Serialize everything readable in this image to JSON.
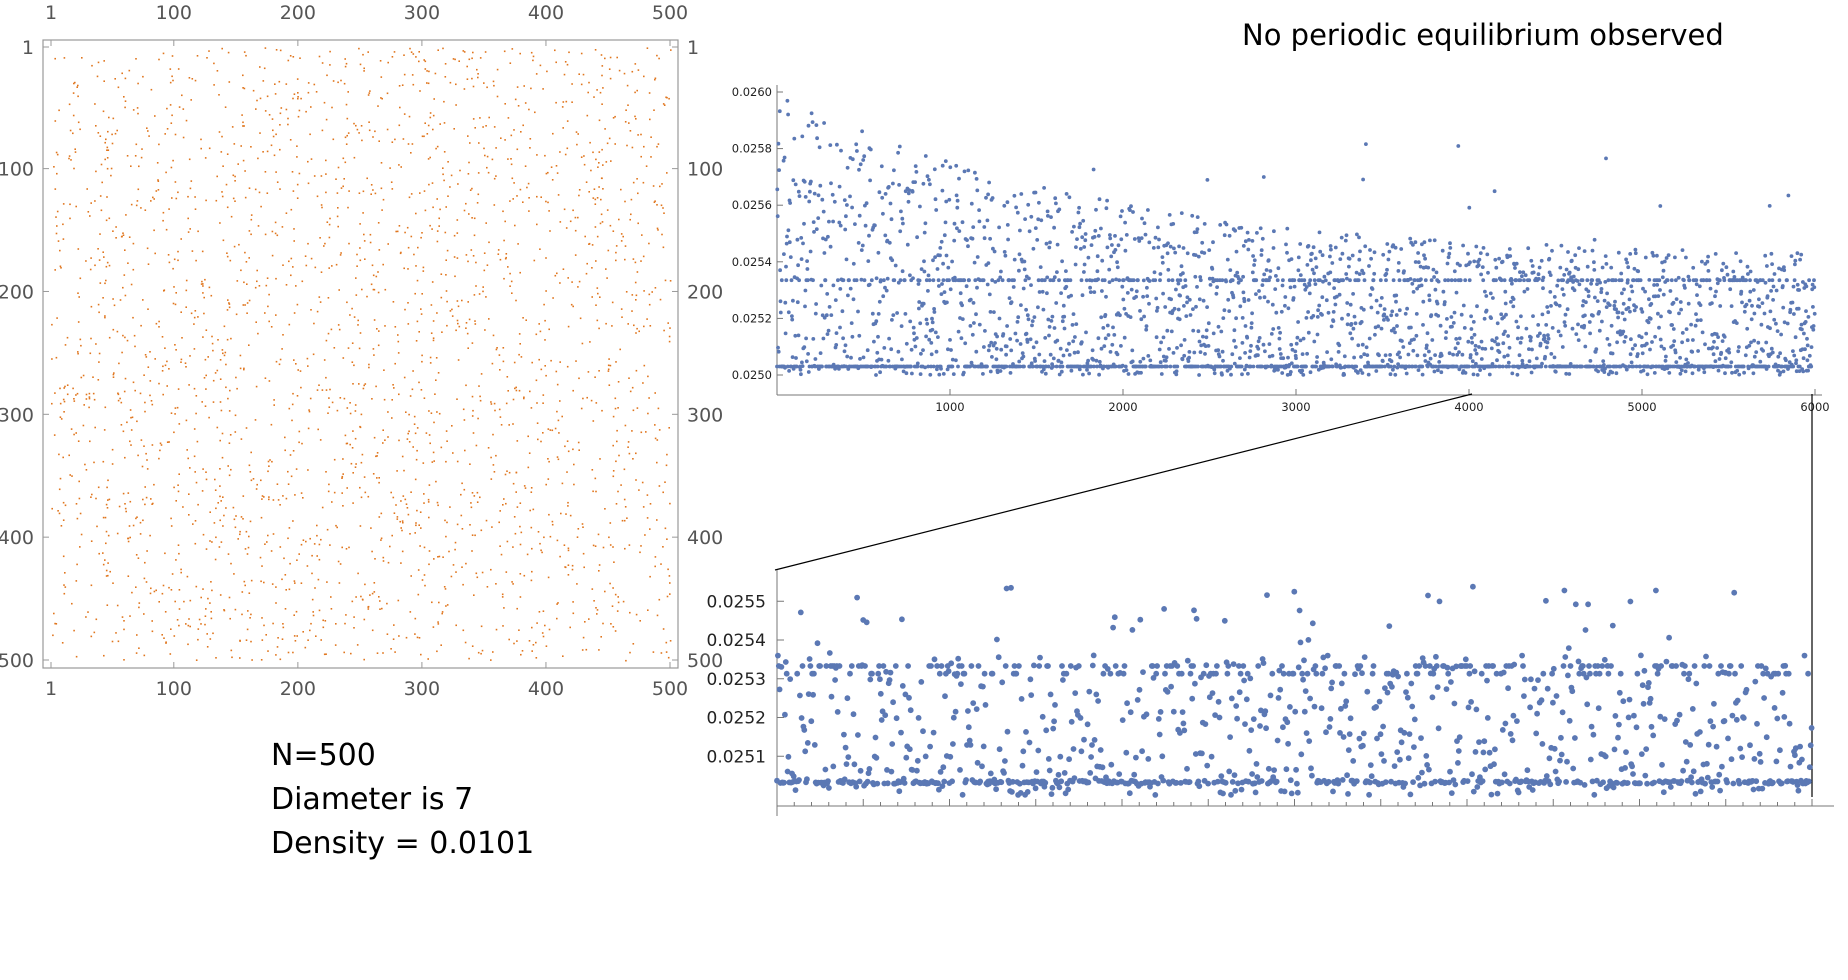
{
  "headline": "No periodic equilibrium observed",
  "info": {
    "n": "N=500",
    "diameter": "Diameter is 7",
    "density": "Density = 0.0101"
  },
  "chart_data": [
    {
      "type": "scatter",
      "title": "",
      "xlabel": "",
      "ylabel": "",
      "xlim": [
        1,
        500
      ],
      "ylim": [
        1,
        500
      ],
      "y_reversed": true,
      "mirrored_frame_ticks": true,
      "x_ticks": [
        "1",
        "100",
        "200",
        "300",
        "400",
        "500"
      ],
      "y_ticks": [
        "1",
        "100",
        "200",
        "300",
        "400",
        "500"
      ],
      "point_color": "#e0761e",
      "point_count_approx": 2525,
      "distribution": "uniform random occupied cells of a 500×500 grid"
    },
    {
      "type": "scatter",
      "title": "",
      "xlabel": "",
      "ylabel": "",
      "xlim": [
        0,
        6000
      ],
      "ylim": [
        0.025,
        0.026
      ],
      "x_ticks": [
        "1000",
        "2000",
        "3000",
        "4000",
        "5000",
        "6000"
      ],
      "y_ticks": [
        "0.0250",
        "0.0252",
        "0.0254",
        "0.0256",
        "0.0258",
        "0.0260"
      ],
      "point_color": "#5b78b4",
      "description": "density vs step; dense band near 0.0250–0.0254, sparse outliers up to 0.0260 early on, recurring levels at 0.02503 and 0.02534"
    },
    {
      "type": "scatter",
      "title": "",
      "xlabel": "",
      "ylabel": "",
      "xlim": [
        4000,
        6000
      ],
      "ylim": [
        0.025,
        0.02556
      ],
      "x_ticks": [],
      "y_ticks": [
        "0.0251",
        "0.0252",
        "0.0253",
        "0.0254",
        "0.0255"
      ],
      "point_color": "#5b78b4",
      "description": "zoom of the upper panel from step 4000 to 6000; bands at 0.02503 and 0.02533"
    }
  ]
}
